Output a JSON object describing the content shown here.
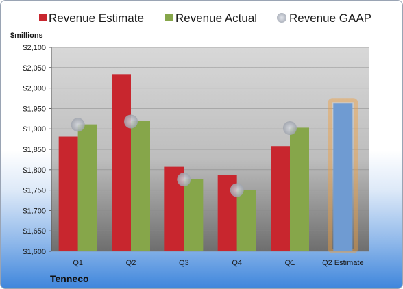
{
  "company": "Tenneco",
  "colors": {
    "estimate": "#c8262e",
    "actual": "#86a64a",
    "gaap": "#b8bcc6",
    "estimate_next": "#6f9bd2",
    "highlight": "#f0a040"
  },
  "chart_data": {
    "type": "bar",
    "ylabel": "$millions",
    "ylim": [
      1600,
      2100
    ],
    "yticks": [
      "$1,600",
      "$1,650",
      "$1,700",
      "$1,750",
      "$1,800",
      "$1,850",
      "$1,900",
      "$1,950",
      "$2,000",
      "$2,050",
      "$2,100"
    ],
    "ytick_values": [
      1600,
      1650,
      1700,
      1750,
      1800,
      1850,
      1900,
      1950,
      2000,
      2050,
      2100
    ],
    "categories": [
      "Q1",
      "Q2",
      "Q3",
      "Q4",
      "Q1",
      "Q2 Estimate"
    ],
    "legend": [
      "Revenue Estimate",
      "Revenue Actual",
      "Revenue GAAP"
    ],
    "legend_position": "top",
    "series": [
      {
        "name": "Revenue Estimate",
        "values": [
          1881,
          2034,
          1807,
          1787,
          1858,
          1962
        ]
      },
      {
        "name": "Revenue Actual",
        "values": [
          1911,
          1919,
          1777,
          1751,
          1903,
          null
        ]
      },
      {
        "name": "Revenue GAAP",
        "values": [
          1910,
          1918,
          1776,
          1750,
          1902,
          null
        ]
      }
    ],
    "grid": true
  }
}
